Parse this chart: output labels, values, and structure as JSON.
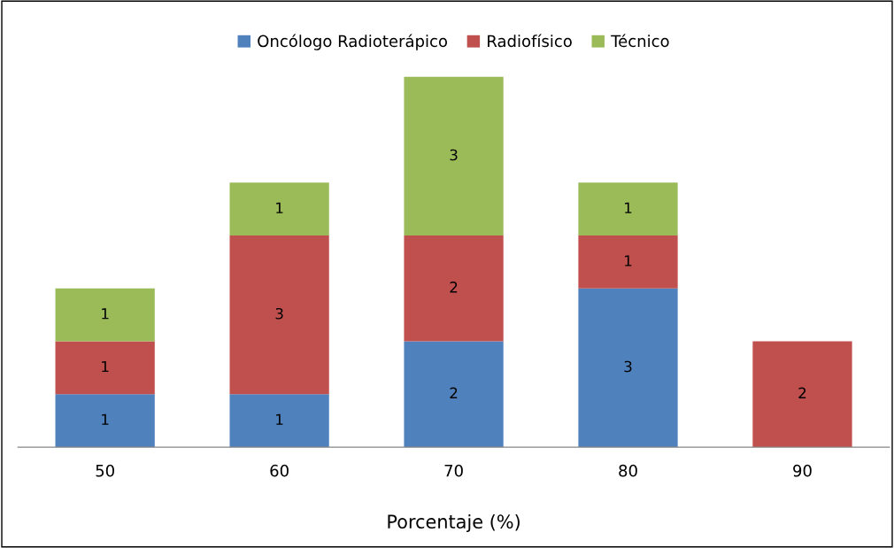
{
  "chart_data": {
    "type": "bar",
    "stacked": true,
    "xlabel": "Porcentaje (%)",
    "categories": [
      "50",
      "60",
      "70",
      "80",
      "90"
    ],
    "series": [
      {
        "name": "Oncólogo Radioterápico",
        "color": "#4f81bd",
        "values": [
          1,
          1,
          2,
          3,
          null
        ]
      },
      {
        "name": "Radiofísico",
        "color": "#c0504d",
        "values": [
          1,
          3,
          2,
          1,
          2
        ]
      },
      {
        "name": "Técnico",
        "color": "#9bbb59",
        "values": [
          1,
          1,
          3,
          1,
          null
        ]
      }
    ],
    "data_labels": true,
    "legend": "top"
  }
}
